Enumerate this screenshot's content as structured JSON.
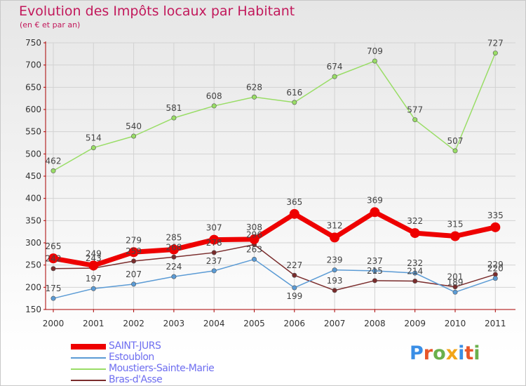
{
  "header": {
    "title": "Evolution des Impôts locaux par Habitant",
    "subtitle": "(en € et par an)"
  },
  "logo": {
    "text": "Proxiti",
    "colors": [
      "#3a8ee6",
      "#e8562a",
      "#6ab04c",
      "#f2a51a",
      "#3a8ee6",
      "#e8562a",
      "#6ab04c"
    ]
  },
  "chart_data": {
    "type": "line",
    "title": "Evolution des Impôts locaux par Habitant",
    "subtitle": "(en € et par an)",
    "xlabel": "",
    "ylabel": "",
    "categories": [
      "2000",
      "2001",
      "2002",
      "2003",
      "2004",
      "2005",
      "2006",
      "2007",
      "2008",
      "2009",
      "2010",
      "2011"
    ],
    "yticks": [
      "150",
      "200",
      "250",
      "300",
      "350",
      "400",
      "450",
      "500",
      "550",
      "600",
      "650",
      "700",
      "750"
    ],
    "ylim": [
      150,
      750
    ],
    "grid": true,
    "legend_position": "bottom-left",
    "series": [
      {
        "name": "SAINT-JURS",
        "color": "#ee0000",
        "values": [
          265,
          249,
          279,
          285,
          307,
          308,
          365,
          312,
          369,
          322,
          315,
          335
        ],
        "labels": [
          "265",
          "249",
          "279",
          "285",
          "307",
          "308",
          "365",
          "312",
          "369",
          "322",
          "315",
          "335"
        ]
      },
      {
        "name": "Estoublon",
        "color": "#5b9bd5",
        "values": [
          175,
          197,
          207,
          224,
          237,
          263,
          199,
          239,
          237,
          232,
          189,
          220
        ],
        "labels": [
          "175",
          "197",
          "207",
          "224",
          "237",
          "263",
          "199",
          "239",
          "237",
          "232",
          "189",
          "220"
        ]
      },
      {
        "name": "Moustiers-Sainte-Marie",
        "color": "#99dd66",
        "values": [
          462,
          514,
          540,
          581,
          608,
          628,
          616,
          674,
          709,
          577,
          507,
          727
        ],
        "labels": [
          "462",
          "514",
          "540",
          "581",
          "608",
          "628",
          "616",
          "674",
          "709",
          "577",
          "507",
          "727"
        ]
      },
      {
        "name": "Bras-d'Asse",
        "color": "#7a2c2c",
        "values": [
          242,
          243,
          259,
          268,
          278,
          296,
          227,
          193,
          215,
          214,
          201,
          229
        ],
        "labels": [
          "242",
          "243",
          "259",
          "268",
          "278",
          "296",
          "227",
          "193",
          "215",
          "214",
          "201",
          "229"
        ]
      }
    ]
  }
}
